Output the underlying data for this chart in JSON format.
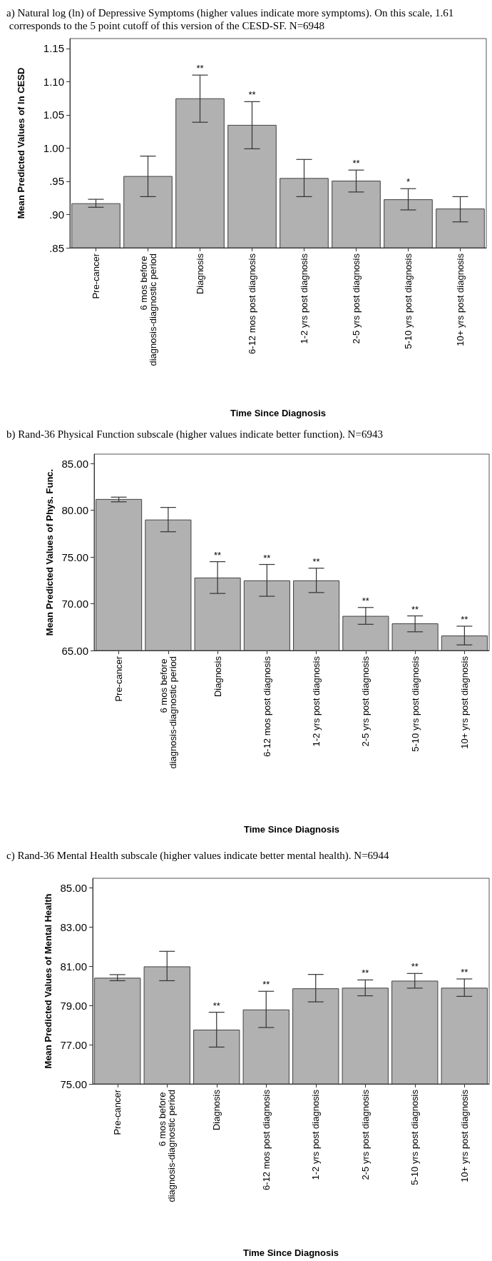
{
  "chart_data": [
    {
      "type": "bar",
      "title": "a) Natural log (ln) of Depressive Symptoms (higher values indicate more symptoms). On this scale, 1.61 corresponds to the 5 point cutoff of this version of the CESD-SF. N=6948",
      "xlabel": "Time Since Diagnosis",
      "ylabel": "Mean Predicted Values of ln CESD",
      "categories": [
        "Pre-cancer",
        "6 mos before diagnosis-diagnostic period",
        "Diagnosis",
        "6-12 mos post diagnosis",
        "1-2 yrs post diagnosis",
        "2-5 yrs post diagnosis",
        "5-10 yrs post diagnosis",
        "10+ yrs post diagnosis"
      ],
      "values": [
        0.917,
        0.958,
        1.075,
        1.035,
        0.955,
        0.951,
        0.923,
        0.909
      ],
      "errors": [
        [
          0.911,
          0.923
        ],
        [
          0.927,
          0.988
        ],
        [
          1.039,
          1.11
        ],
        [
          0.999,
          1.07
        ],
        [
          0.927,
          0.983
        ],
        [
          0.934,
          0.967
        ],
        [
          0.907,
          0.939
        ],
        [
          0.889,
          0.927
        ]
      ],
      "color": "#b1b1b1",
      "ylim": [
        0.85,
        1.165
      ],
      "yticks": [
        {
          "value": 0.85,
          "label": ".85"
        },
        {
          "value": 0.9,
          "label": ".90"
        },
        {
          "value": 0.95,
          "label": ".95"
        },
        {
          "value": 1.0,
          "label": "1.00"
        },
        {
          "value": 1.05,
          "label": "1.05"
        },
        {
          "value": 1.1,
          "label": "1.10"
        },
        {
          "value": 1.15,
          "label": "1.15"
        }
      ],
      "annotations": [
        {
          "text": "**",
          "x": "Diagnosis",
          "y": 1.11
        },
        {
          "text": "**",
          "x": "6-12 mos post diagnosis",
          "y": 1.07
        },
        {
          "text": "**",
          "x": "2-5 yrs post diagnosis",
          "y": 0.967
        },
        {
          "text": "*",
          "x": "5-10 yrs post diagnosis",
          "y": 0.939
        }
      ],
      "grid": false
    },
    {
      "type": "bar",
      "title": "b) Rand-36 Physical Function subscale (higher values indicate better function). N=6943",
      "xlabel": "Time Since Diagnosis",
      "ylabel": "Mean Predicted Values of Phys. Func.",
      "categories": [
        "Pre-cancer",
        "6 mos before diagnosis-diagnostic period",
        "Diagnosis",
        "6-12 mos post diagnosis",
        "1-2 yrs post diagnosis",
        "2-5 yrs post diagnosis",
        "5-10 yrs post diagnosis",
        "10+ yrs post diagnosis"
      ],
      "values": [
        81.2,
        79.0,
        72.8,
        72.5,
        72.5,
        68.7,
        67.9,
        66.6
      ],
      "errors": [
        [
          80.9,
          81.4
        ],
        [
          77.7,
          80.3
        ],
        [
          71.1,
          74.5
        ],
        [
          70.8,
          74.2
        ],
        [
          71.2,
          73.8
        ],
        [
          67.8,
          69.6
        ],
        [
          67.0,
          68.7
        ],
        [
          65.6,
          67.6
        ]
      ],
      "color": "#b1b1b1",
      "ylim": [
        65,
        86
      ],
      "yticks": [
        {
          "value": 65,
          "label": "65.00"
        },
        {
          "value": 70,
          "label": "70.00"
        },
        {
          "value": 75,
          "label": "75.00"
        },
        {
          "value": 80,
          "label": "80.00"
        },
        {
          "value": 85,
          "label": "85.00"
        }
      ],
      "annotations": [
        {
          "text": "**",
          "x": "Diagnosis",
          "y": 74.5
        },
        {
          "text": "**",
          "x": "6-12 mos post diagnosis",
          "y": 74.2
        },
        {
          "text": "**",
          "x": "1-2 yrs post diagnosis",
          "y": 73.8
        },
        {
          "text": "**",
          "x": "2-5 yrs post diagnosis",
          "y": 69.6
        },
        {
          "text": "**",
          "x": "5-10 yrs post diagnosis",
          "y": 68.7
        },
        {
          "text": "**",
          "x": "10+ yrs post diagnosis",
          "y": 67.6
        }
      ],
      "grid": false
    },
    {
      "type": "bar",
      "title": "c) Rand-36 Mental Health subscale (higher values indicate better mental health). N=6944",
      "xlabel": "Time Since Diagnosis",
      "ylabel": "Mean Predicted Values of Mental Health",
      "categories": [
        "Pre-cancer",
        "6 mos before diagnosis-diagnostic period",
        "Diagnosis",
        "6-12 mos post diagnosis",
        "1-2 yrs post diagnosis",
        "2-5 yrs post diagnosis",
        "5-10 yrs post diagnosis",
        "10+ yrs post diagnosis"
      ],
      "values": [
        80.42,
        81.0,
        77.77,
        78.8,
        79.88,
        79.91,
        80.27,
        79.91
      ],
      "errors": [
        [
          80.27,
          80.58
        ],
        [
          80.27,
          81.77
        ],
        [
          76.88,
          78.66
        ],
        [
          77.88,
          79.73
        ],
        [
          79.19,
          80.59
        ],
        [
          79.5,
          80.31
        ],
        [
          79.89,
          80.64
        ],
        [
          79.47,
          80.36
        ]
      ],
      "color": "#b1b1b1",
      "ylim": [
        75,
        85.5
      ],
      "yticks": [
        {
          "value": 75,
          "label": "75.00"
        },
        {
          "value": 77,
          "label": "77.00"
        },
        {
          "value": 79,
          "label": "79.00"
        },
        {
          "value": 81,
          "label": "81.00"
        },
        {
          "value": 83,
          "label": "83.00"
        },
        {
          "value": 85,
          "label": "85.00"
        }
      ],
      "annotations": [
        {
          "text": "**",
          "x": "Diagnosis",
          "y": 78.66
        },
        {
          "text": "**",
          "x": "6-12 mos post diagnosis",
          "y": 79.73
        },
        {
          "text": "**",
          "x": "2-5 yrs post diagnosis",
          "y": 80.31
        },
        {
          "text": "**",
          "x": "5-10 yrs post diagnosis",
          "y": 80.64
        },
        {
          "text": "**",
          "x": "10+ yrs post diagnosis",
          "y": 80.36
        }
      ],
      "grid": false
    }
  ]
}
